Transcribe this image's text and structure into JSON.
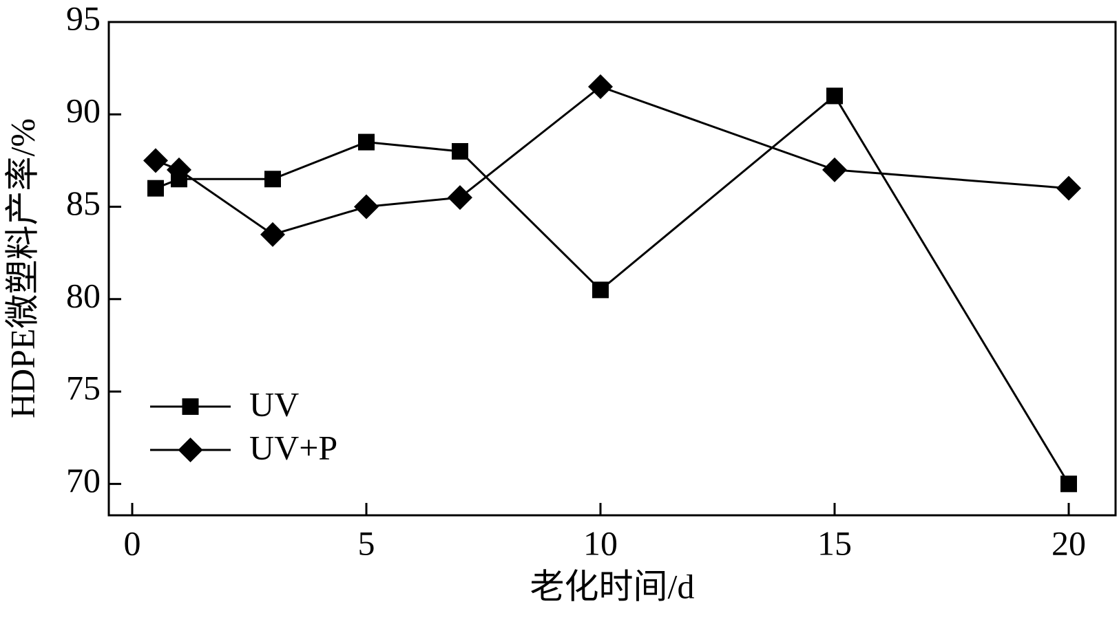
{
  "chart_data": {
    "type": "line",
    "x_label": "老化时间/d",
    "y_label": "HDPE微塑料产率/%",
    "x": [
      0.5,
      1,
      3,
      5,
      7,
      10,
      15,
      20
    ],
    "series": [
      {
        "name": "UV",
        "color": "#000000",
        "marker": "square",
        "values": [
          86,
          86.5,
          86.5,
          88.5,
          88,
          80.5,
          91,
          70
        ]
      },
      {
        "name": "UV+P",
        "color": "#000000",
        "marker": "diamond",
        "values": [
          87.5,
          87,
          83.5,
          85,
          85.5,
          91.5,
          87,
          86
        ]
      }
    ],
    "xlim": [
      -0.5,
      21
    ],
    "xticks": [
      0,
      5,
      10,
      15,
      20
    ],
    "ylim": [
      68.3,
      95
    ],
    "yticks": [
      70,
      75,
      80,
      85,
      90,
      95
    ],
    "legend": "lower left"
  }
}
